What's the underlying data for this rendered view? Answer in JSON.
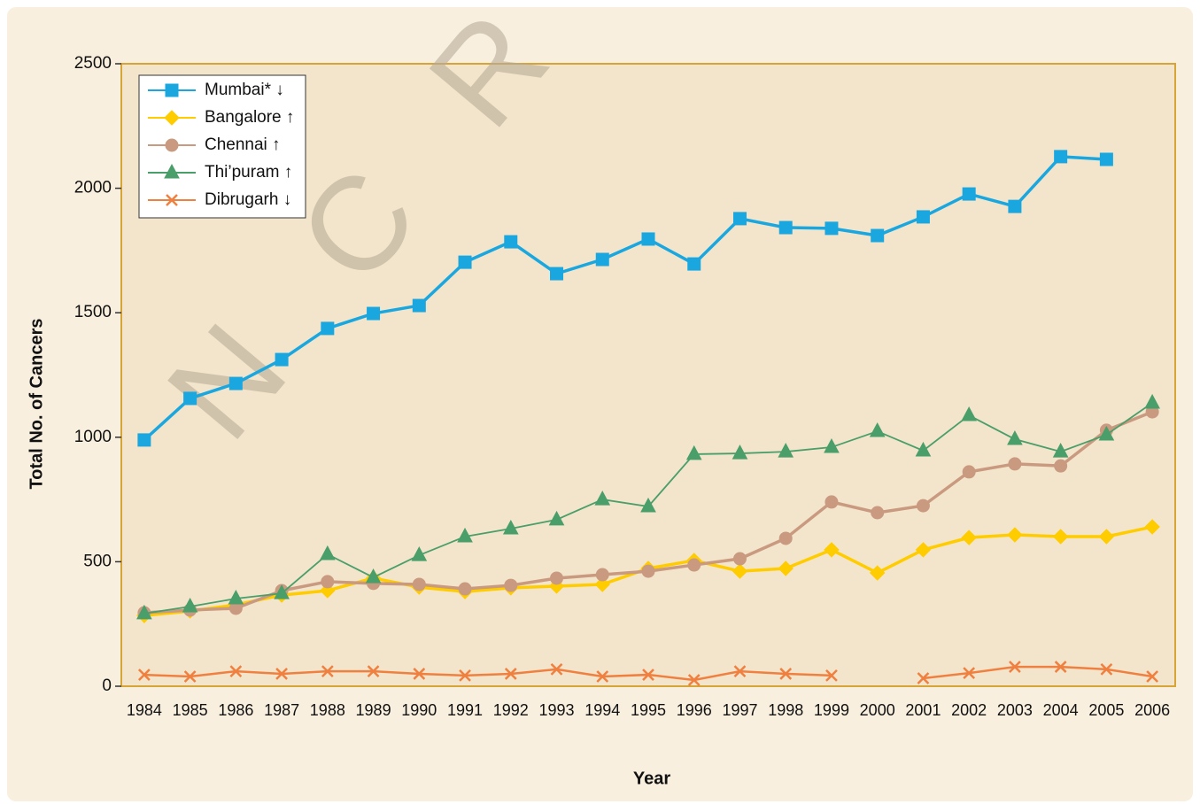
{
  "chart_data": {
    "type": "line",
    "watermark": "N C R P , B a",
    "x_label": "Year",
    "y_label": "Total No. of Cancers",
    "categories": [
      "1984",
      "1985",
      "1986",
      "1987",
      "1988",
      "1989",
      "1990",
      "1991",
      "1992",
      "1993",
      "1994",
      "1995",
      "1996",
      "1997",
      "1998",
      "1999",
      "2000",
      "2001",
      "2002",
      "2003",
      "2004",
      "2005",
      "2006"
    ],
    "ylim": [
      0,
      2500
    ],
    "yticks": [
      0,
      500,
      1000,
      1500,
      2000,
      2500
    ],
    "legend": "upper left",
    "series": [
      {
        "name": "Mumbai* ↓",
        "color": "#1aa7e0",
        "marker": "square",
        "values": [
          989,
          1156,
          1216,
          1312,
          1437,
          1497,
          1529,
          1703,
          1785,
          1657,
          1714,
          1796,
          1696,
          1878,
          1842,
          1839,
          1810,
          1885,
          1977,
          1927,
          2127,
          2116,
          null
        ]
      },
      {
        "name": "Bangalore ↑",
        "color": "#ffcc00",
        "marker": "diamond",
        "values": [
          284,
          302,
          327,
          366,
          384,
          434,
          398,
          380,
          395,
          402,
          409,
          473,
          505,
          462,
          473,
          548,
          455,
          548,
          597,
          608,
          601,
          601,
          640
        ]
      },
      {
        "name": "Chennai ↑",
        "color": "#c99a7f",
        "marker": "circle",
        "values": [
          295,
          306,
          313,
          384,
          420,
          413,
          409,
          391,
          405,
          434,
          448,
          462,
          487,
          512,
          594,
          740,
          697,
          725,
          861,
          893,
          885,
          1028,
          1102
        ]
      },
      {
        "name": "Thi’puram ↑",
        "color": "#4a9e6a",
        "marker": "triangle",
        "values": [
          292,
          320,
          352,
          373,
          530,
          437,
          526,
          601,
          633,
          669,
          750,
          722,
          932,
          935,
          942,
          960,
          1024,
          946,
          1088,
          992,
          942,
          1010,
          1138
        ]
      },
      {
        "name": "Dibrugarh ↓",
        "color": "#f08040",
        "marker": "x",
        "values": [
          46,
          39,
          60,
          50,
          60,
          60,
          50,
          43,
          50,
          68,
          39,
          46,
          25,
          60,
          50,
          43,
          null,
          32,
          53,
          78,
          78,
          68,
          39
        ]
      }
    ]
  }
}
